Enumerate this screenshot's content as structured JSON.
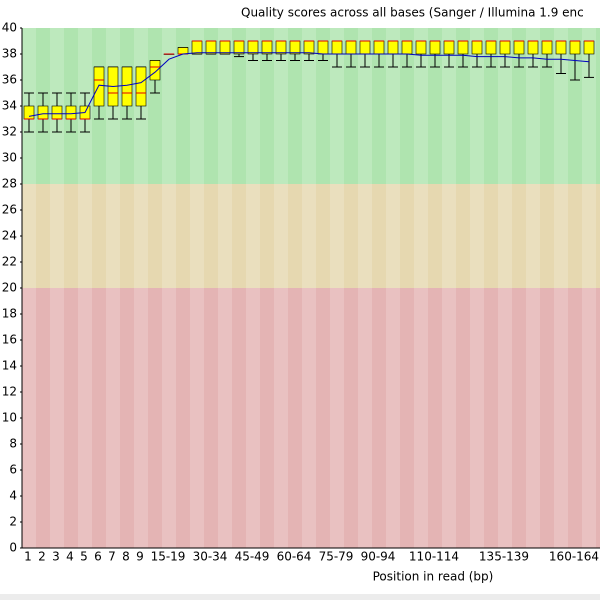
{
  "chart_data": {
    "type": "boxplot",
    "title": "Quality scores across all bases (Sanger / Illumina 1.9 enc",
    "x_label": "Position in read (bp)",
    "categories": [
      "1",
      "2",
      "3",
      "4",
      "5",
      "6",
      "7",
      "8",
      "9",
      null,
      "15-19",
      null,
      null,
      "30-34",
      null,
      null,
      "45-49",
      null,
      null,
      "60-64",
      null,
      null,
      "75-79",
      null,
      null,
      "90-94",
      null,
      null,
      null,
      "110-114",
      null,
      null,
      null,
      null,
      "135-139",
      null,
      null,
      null,
      null,
      "160-164",
      null
    ],
    "whisker_low": [
      32,
      32,
      32,
      32,
      32,
      33,
      33,
      33,
      33,
      35,
      38,
      38,
      38,
      38,
      38,
      37.8,
      37.5,
      37.5,
      37.5,
      37.5,
      37.5,
      37.5,
      37,
      37,
      37,
      37,
      37,
      37,
      37,
      37,
      37,
      37,
      37,
      37,
      37,
      37,
      37,
      37,
      36.5,
      36,
      36.2
    ],
    "q1": [
      33,
      33,
      33,
      33,
      33,
      34,
      34,
      34,
      34,
      36,
      38,
      38,
      38,
      38,
      38,
      38,
      38,
      38,
      38,
      38,
      38,
      38,
      38,
      38,
      38,
      38,
      38,
      38,
      38,
      38,
      38,
      38,
      38,
      38,
      38,
      38,
      38,
      38,
      38,
      38,
      38
    ],
    "median": [
      33,
      33,
      33,
      33,
      33,
      36,
      35,
      35,
      35,
      37,
      38,
      38,
      39,
      39,
      39,
      39,
      39,
      39,
      39,
      39,
      39,
      39,
      39,
      39,
      39,
      39,
      39,
      39,
      39,
      39,
      39,
      39,
      39,
      39,
      39,
      39,
      39,
      39,
      39,
      39,
      39
    ],
    "q3": [
      34,
      34,
      34,
      34,
      34,
      37,
      37,
      37,
      37,
      37.5,
      38,
      38.5,
      39,
      39,
      39,
      39,
      39,
      39,
      39,
      39,
      39,
      39,
      39,
      39,
      39,
      39,
      39,
      39,
      39,
      39,
      39,
      39,
      39,
      39,
      39,
      39,
      39,
      39,
      39,
      39,
      39
    ],
    "whisker_high": [
      35,
      35,
      35,
      35,
      35,
      37,
      37,
      37,
      37,
      37.5,
      38,
      38.5,
      39,
      39,
      39,
      39,
      39,
      39,
      39,
      39,
      39,
      39,
      39,
      39,
      39,
      39,
      39,
      39,
      39,
      39,
      39,
      39,
      39,
      39,
      39,
      39,
      39,
      39,
      39,
      39,
      39
    ],
    "mean": [
      33.2,
      33.4,
      33.4,
      33.4,
      33.5,
      35.6,
      35.5,
      35.6,
      35.8,
      36.6,
      37.6,
      38.0,
      38.1,
      38.1,
      38.1,
      38.1,
      38.1,
      38.1,
      38.1,
      38.1,
      38.1,
      38.0,
      38.0,
      38.0,
      38.0,
      38.0,
      38.0,
      38.0,
      37.9,
      37.9,
      37.9,
      37.9,
      37.8,
      37.8,
      37.8,
      37.7,
      37.7,
      37.6,
      37.6,
      37.5,
      37.4
    ],
    "box_color": "#ffff00",
    "median_color": "#e00000",
    "mean_color": "#0000c0",
    "bands": [
      {
        "from": 28,
        "to": 40,
        "color": "#afe4af"
      },
      {
        "from": 20,
        "to": 28,
        "color": "#e6d8b0"
      },
      {
        "from": 0,
        "to": 20,
        "color": "#e4b4b4"
      }
    ],
    "ylim": [
      0,
      40
    ],
    "yticks": [
      0,
      2,
      4,
      6,
      8,
      10,
      12,
      14,
      16,
      18,
      20,
      22,
      24,
      26,
      28,
      30,
      32,
      34,
      36,
      38,
      40
    ]
  }
}
